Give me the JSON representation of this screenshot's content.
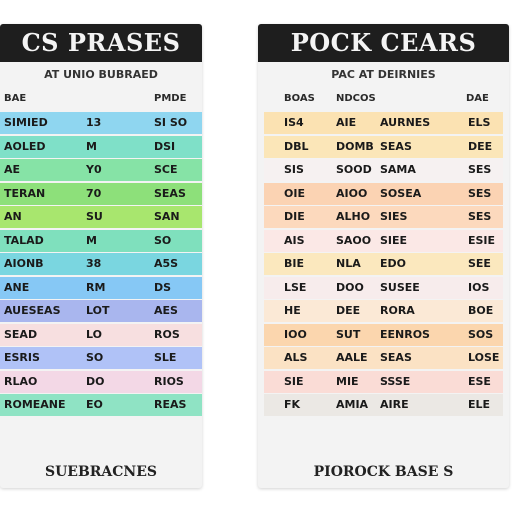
{
  "left": {
    "title": "CS PRASES",
    "subtitle": "AT UNIO BUBRAED",
    "col_headers": [
      "BAE",
      "",
      "PMDE"
    ],
    "rows": [
      {
        "cells": [
          "SIMIED",
          "13",
          "SI SO"
        ],
        "color": "#8fd6f0"
      },
      {
        "cells": [
          "AOLED",
          "M",
          "DSI"
        ],
        "color": "#7fe0c8"
      },
      {
        "cells": [
          "AE",
          "Y0",
          "SCE"
        ],
        "color": "#86e3a6"
      },
      {
        "cells": [
          "TERAN",
          "70",
          "SEAS"
        ],
        "color": "#8de07a"
      },
      {
        "cells": [
          "AN",
          "SU",
          "SAN"
        ],
        "color": "#a8e66e"
      },
      {
        "cells": [
          "TALAD",
          "M",
          "SO"
        ],
        "color": "#7fe0bd"
      },
      {
        "cells": [
          "AIONB",
          "38",
          "A5S"
        ],
        "color": "#7ad6e0"
      },
      {
        "cells": [
          "ANE",
          "RM",
          "DS"
        ],
        "color": "#86c8f5"
      },
      {
        "cells": [
          "AUESEAS",
          "LOT",
          "AES"
        ],
        "color": "#a9b6ee"
      },
      {
        "cells": [
          "SEAD",
          "LO",
          "ROS"
        ],
        "color": "#f7dfe0"
      },
      {
        "cells": [
          "ESRIS",
          "SO",
          "SLE"
        ],
        "color": "#b0c2f7"
      },
      {
        "cells": [
          "RLAO",
          "DO",
          "RIOS"
        ],
        "color": "#f3d8e6"
      },
      {
        "cells": [
          "ROMEANE",
          "EO",
          "REAS"
        ],
        "color": "#8fe3c4"
      }
    ],
    "footer": "SUEBRACNES"
  },
  "right": {
    "title": "POCK CEARS",
    "subtitle": "PAC AT DEIRNIES",
    "col_headers": [
      "BOAS",
      "NDCOS",
      "",
      "DAE"
    ],
    "rows": [
      {
        "cells": [
          "IS4",
          "AIE",
          "AURNES",
          "ELS"
        ],
        "color": "#fbe2b2"
      },
      {
        "cells": [
          "DBL",
          "DOMB",
          "SEAS",
          "DEE"
        ],
        "color": "#fbe6b8"
      },
      {
        "cells": [
          "SIS",
          "SOOD",
          "SAMA",
          "SES"
        ],
        "color": "#f6f1f1"
      },
      {
        "cells": [
          "OIE",
          "AIOO",
          "SOSEA",
          "SES"
        ],
        "color": "#fbd3b3"
      },
      {
        "cells": [
          "DIE",
          "ALHO",
          "SIES",
          "SES"
        ],
        "color": "#fcd9bd"
      },
      {
        "cells": [
          "AIS",
          "SAOO",
          "SIEE",
          "ESIE"
        ],
        "color": "#fbe8e6"
      },
      {
        "cells": [
          "BIE",
          "NLA",
          "EDO",
          "SEE"
        ],
        "color": "#fbe8be"
      },
      {
        "cells": [
          "LSE",
          "DOO",
          "SUSEE",
          "IOS"
        ],
        "color": "#f7ecec"
      },
      {
        "cells": [
          "HE",
          "DEE",
          "RORA",
          "BOE"
        ],
        "color": "#fbe9d6"
      },
      {
        "cells": [
          "IOO",
          "SUT",
          "EENROS",
          "SOS"
        ],
        "color": "#fbd6ae"
      },
      {
        "cells": [
          "ALS",
          "AALE",
          "SEAS",
          "LOSE"
        ],
        "color": "#fbe2c4"
      },
      {
        "cells": [
          "SIE",
          "MIE",
          "SSSE",
          "ESE"
        ],
        "color": "#fadcd6"
      },
      {
        "cells": [
          "FK",
          "AMIA",
          "AIRE",
          "ELE"
        ],
        "color": "#ebe8e4"
      }
    ],
    "footer": "PIOROCK BASE S"
  }
}
